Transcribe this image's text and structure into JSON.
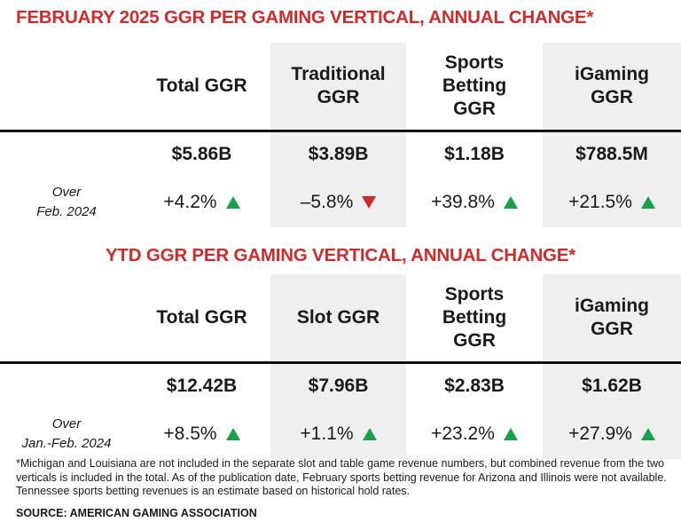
{
  "tables": [
    {
      "title": "FEBRUARY 2025 GGR PER GAMING VERTICAL, ANNUAL CHANGE*",
      "columns": [
        "Total GGR",
        "Traditional\nGGR",
        "Sports\nBetting\nGGR",
        "iGaming\nGGR"
      ],
      "totals": [
        "$5.86B",
        "$3.89B",
        "$1.18B",
        "$788.5M"
      ],
      "change_label": "Over\nFeb. 2024",
      "changes": [
        "+4.2%",
        "–5.8%",
        "+39.8%",
        "+21.5%"
      ]
    },
    {
      "title": "YTD GGR PER GAMING VERTICAL, ANNUAL CHANGE*",
      "columns": [
        "Total GGR",
        "Slot GGR",
        "Sports\nBetting\nGGR",
        "iGaming\nGGR"
      ],
      "totals": [
        "$12.42B",
        "$7.96B",
        "$2.83B",
        "$1.62B"
      ],
      "change_label": "Over\nJan.-Feb. 2024",
      "changes": [
        "+8.5%",
        "+1.1%",
        "+23.2%",
        "+27.9%"
      ]
    }
  ],
  "footnote": "*Michigan and Louisiana are not included in the separate slot and table game revenue numbers, but combined revenue from the two verticals is included in the total. As of the publication date, February sports betting revenue for Arizona and Illinois were not available. Tennessee sports betting revenues is an estimate based on historical hold rates.",
  "source": "SOURCE: AMERICAN GAMING ASSOCIATION"
}
